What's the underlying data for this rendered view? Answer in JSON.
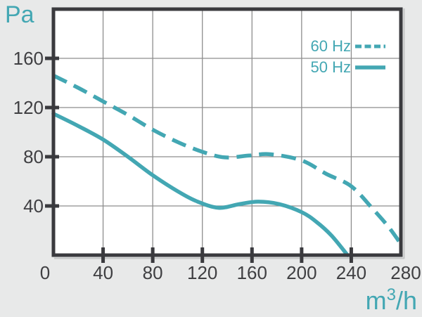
{
  "colors": {
    "accent": "#43a7b3",
    "axis": "#3a3a3e",
    "grid": "#8d8d8d",
    "tick_label": "#3f3f42",
    "page_background": "#e8e9e9",
    "plot_background": "#ffffff",
    "border_shadow": "#c3c5c5"
  },
  "labels": {
    "y_unit": "Pa",
    "x_unit": {
      "base": "m",
      "sup": "3",
      "rest": "/h"
    }
  },
  "chart_data": {
    "type": "line",
    "title": "",
    "xlabel": "m³/h",
    "ylabel": "Pa",
    "xlim": [
      0,
      280
    ],
    "ylim": [
      0,
      200
    ],
    "x_ticks": [
      0,
      40,
      80,
      120,
      160,
      200,
      240,
      280
    ],
    "y_ticks": [
      40,
      80,
      120,
      160
    ],
    "grid": true,
    "legend_position": "top-right",
    "series": [
      {
        "name": "60 Hz",
        "line_style": "dashed",
        "points": [
          [
            0,
            146
          ],
          [
            20,
            136
          ],
          [
            40,
            125
          ],
          [
            60,
            114
          ],
          [
            80,
            102
          ],
          [
            100,
            92
          ],
          [
            120,
            84
          ],
          [
            138,
            79.5
          ],
          [
            158,
            81
          ],
          [
            175,
            82
          ],
          [
            200,
            77
          ],
          [
            220,
            66
          ],
          [
            240,
            56
          ],
          [
            257,
            38
          ],
          [
            270,
            23
          ],
          [
            280,
            9
          ]
        ]
      },
      {
        "name": "50 Hz",
        "line_style": "solid",
        "points": [
          [
            0,
            115
          ],
          [
            20,
            105
          ],
          [
            40,
            94
          ],
          [
            60,
            80
          ],
          [
            80,
            65
          ],
          [
            100,
            52
          ],
          [
            115,
            44
          ],
          [
            133,
            38.5
          ],
          [
            150,
            41.5
          ],
          [
            165,
            43.5
          ],
          [
            182,
            41.5
          ],
          [
            200,
            35
          ],
          [
            212,
            27
          ],
          [
            224,
            16
          ],
          [
            237,
            0
          ]
        ]
      }
    ]
  }
}
